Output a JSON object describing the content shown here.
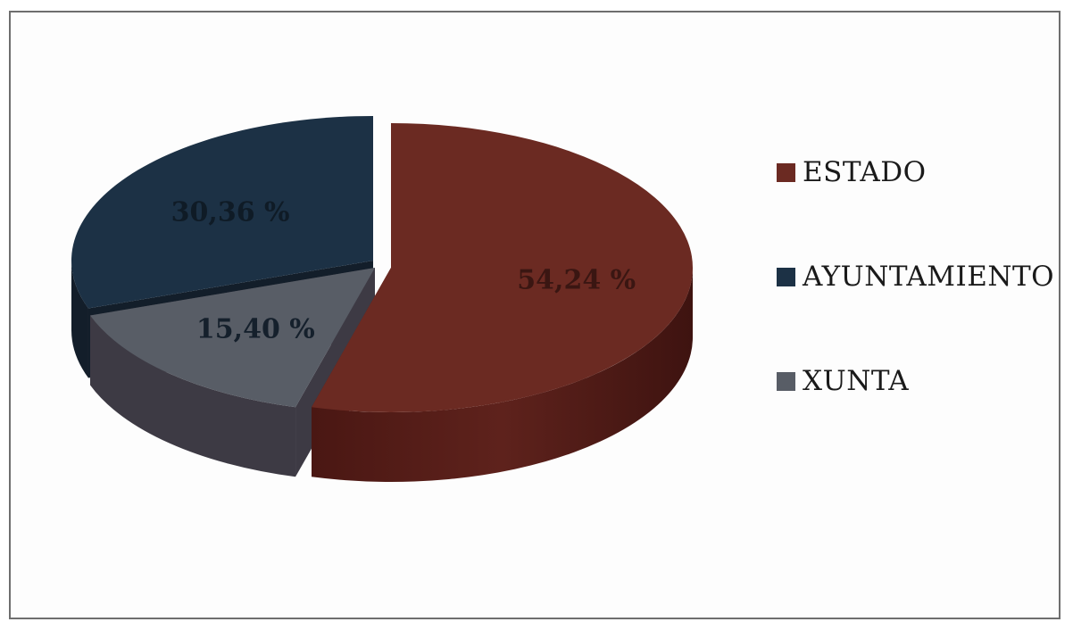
{
  "chart_data": {
    "type": "pie",
    "title": "",
    "labels": [
      "ESTADO",
      "AYUNTAMIENTO",
      "XUNTA"
    ],
    "values": [
      54.24,
      30.36,
      15.4
    ],
    "value_labels": [
      "54,24 %",
      "30,36 %",
      "15,40 %"
    ],
    "colors": [
      "#6b2a22",
      "#1c3145",
      "#585d66"
    ],
    "legend_position": "right",
    "exploded": true,
    "three_d": true
  },
  "legend": {
    "items": [
      {
        "label": "ESTADO",
        "color": "#6b2a22"
      },
      {
        "label": "AYUNTAMIENTO",
        "color": "#1c3145"
      },
      {
        "label": "XUNTA",
        "color": "#585d66"
      }
    ]
  }
}
